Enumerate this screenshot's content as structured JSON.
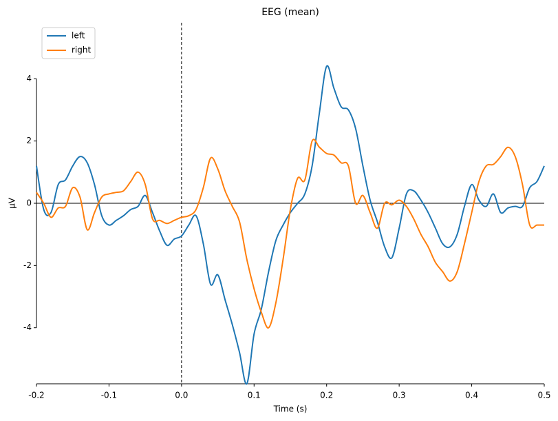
{
  "chart_data": {
    "type": "line",
    "title": "EEG (mean)",
    "xlabel": "Time (s)",
    "ylabel": "µV",
    "x": [
      -0.2,
      -0.19,
      -0.18,
      -0.17,
      -0.16,
      -0.15,
      -0.14,
      -0.13,
      -0.12,
      -0.11,
      -0.1,
      -0.09,
      -0.08,
      -0.07,
      -0.06,
      -0.05,
      -0.04,
      -0.03,
      -0.02,
      -0.01,
      0,
      0.01,
      0.02,
      0.03,
      0.04,
      0.05,
      0.06,
      0.07,
      0.08,
      0.09,
      0.1,
      0.11,
      0.12,
      0.13,
      0.14,
      0.15,
      0.16,
      0.17,
      0.18,
      0.19,
      0.2,
      0.21,
      0.22,
      0.23,
      0.24,
      0.25,
      0.26,
      0.27,
      0.28,
      0.29,
      0.3,
      0.31,
      0.32,
      0.33,
      0.34,
      0.35,
      0.36,
      0.37,
      0.38,
      0.39,
      0.4,
      0.41,
      0.42,
      0.43,
      0.44,
      0.45,
      0.46,
      0.47,
      0.48,
      0.49,
      0.5
    ],
    "series": [
      {
        "name": "left",
        "color": "#1f77b4",
        "values": [
          1.2,
          -0.2,
          -0.3,
          0.6,
          0.75,
          1.2,
          1.5,
          1.3,
          0.6,
          -0.4,
          -0.7,
          -0.55,
          -0.4,
          -0.2,
          -0.1,
          0.25,
          -0.3,
          -0.9,
          -1.35,
          -1.15,
          -1.05,
          -0.7,
          -0.4,
          -1.3,
          -2.6,
          -2.3,
          -3.1,
          -3.9,
          -4.8,
          -5.8,
          -4.2,
          -3.4,
          -2.2,
          -1.2,
          -0.7,
          -0.3,
          0.0,
          0.3,
          1.2,
          2.9,
          4.4,
          3.7,
          3.1,
          3.0,
          2.4,
          1.2,
          0.1,
          -0.6,
          -1.4,
          -1.75,
          -0.8,
          0.3,
          0.4,
          0.1,
          -0.3,
          -0.8,
          -1.3,
          -1.4,
          -1.0,
          -0.1,
          0.6,
          0.1,
          -0.1,
          0.3,
          -0.3,
          -0.15,
          -0.1,
          -0.1,
          0.5,
          0.7,
          1.2
        ]
      },
      {
        "name": "right",
        "color": "#ff7f0e",
        "values": [
          0.35,
          0.0,
          -0.45,
          -0.15,
          -0.1,
          0.5,
          0.2,
          -0.85,
          -0.3,
          0.2,
          0.3,
          0.35,
          0.4,
          0.7,
          1.0,
          0.6,
          -0.5,
          -0.55,
          -0.65,
          -0.55,
          -0.45,
          -0.4,
          -0.2,
          0.5,
          1.45,
          1.1,
          0.4,
          -0.1,
          -0.6,
          -1.8,
          -2.75,
          -3.5,
          -4.0,
          -3.2,
          -1.8,
          -0.2,
          0.8,
          0.75,
          2.0,
          1.8,
          1.6,
          1.55,
          1.3,
          1.2,
          0.0,
          0.25,
          -0.3,
          -0.8,
          0.0,
          -0.05,
          0.1,
          -0.1,
          -0.5,
          -1.0,
          -1.4,
          -1.9,
          -2.2,
          -2.5,
          -2.2,
          -1.3,
          -0.3,
          0.7,
          1.2,
          1.25,
          1.5,
          1.8,
          1.5,
          0.6,
          -0.7,
          -0.7,
          -0.7
        ]
      }
    ],
    "xlim": [
      -0.2,
      0.5
    ],
    "xticks": [
      -0.2,
      -0.1,
      {
        "value": 0,
        "label": "0.0"
      },
      0.1,
      0.2,
      0.3,
      0.4,
      0.5
    ],
    "ylim": [
      -5.8,
      5.8
    ],
    "yticks": [
      -4,
      -2,
      0,
      2,
      4
    ],
    "legend": "upper left"
  }
}
